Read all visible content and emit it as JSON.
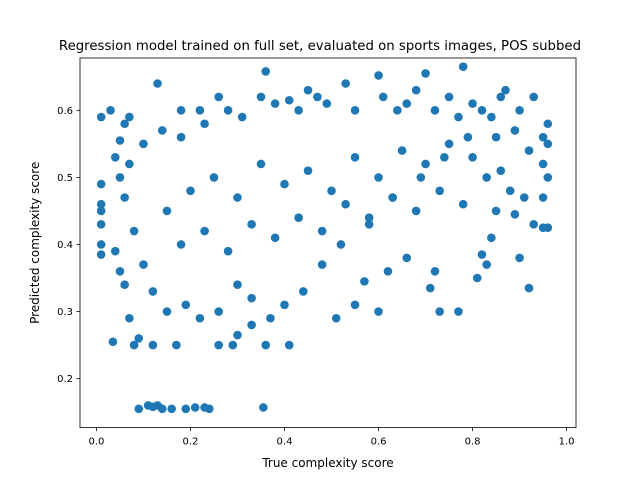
{
  "chart_data": {
    "type": "scatter",
    "title": "Regression model trained on full set, evaluated on sports images, POS subbed",
    "xlabel": "True complexity score",
    "ylabel": "Predicted complexity score",
    "xlim": [
      -0.035,
      1.02
    ],
    "ylim": [
      0.127,
      0.678
    ],
    "xticks": [
      0.0,
      0.2,
      0.4,
      0.6,
      0.8,
      1.0
    ],
    "xtick_labels": [
      "0.0",
      "0.2",
      "0.4",
      "0.6",
      "0.8",
      "1.0"
    ],
    "yticks": [
      0.2,
      0.3,
      0.4,
      0.5,
      0.6
    ],
    "ytick_labels": [
      "0.2",
      "0.3",
      "0.4",
      "0.5",
      "0.6"
    ],
    "grid": false,
    "legend": "none",
    "point_color": "#1f77b4",
    "notes_visible": "dense cloud of several thousand points; listed points are representative samples",
    "series": [
      {
        "values_xy": [
          [
            0.01,
            0.59
          ],
          [
            0.03,
            0.6
          ],
          [
            0.01,
            0.49
          ],
          [
            0.01,
            0.46
          ],
          [
            0.01,
            0.45
          ],
          [
            0.01,
            0.43
          ],
          [
            0.01,
            0.4
          ],
          [
            0.01,
            0.385
          ],
          [
            0.035,
            0.255
          ],
          [
            0.04,
            0.53
          ],
          [
            0.05,
            0.555
          ],
          [
            0.06,
            0.58
          ],
          [
            0.07,
            0.59
          ],
          [
            0.04,
            0.39
          ],
          [
            0.05,
            0.36
          ],
          [
            0.06,
            0.34
          ],
          [
            0.07,
            0.29
          ],
          [
            0.08,
            0.25
          ],
          [
            0.09,
            0.26
          ],
          [
            0.09,
            0.155
          ],
          [
            0.11,
            0.16
          ],
          [
            0.12,
            0.158
          ],
          [
            0.13,
            0.16
          ],
          [
            0.14,
            0.155
          ],
          [
            0.16,
            0.155
          ],
          [
            0.19,
            0.155
          ],
          [
            0.21,
            0.157
          ],
          [
            0.23,
            0.157
          ],
          [
            0.24,
            0.155
          ],
          [
            0.355,
            0.157
          ],
          [
            0.13,
            0.64
          ],
          [
            0.18,
            0.6
          ],
          [
            0.12,
            0.25
          ],
          [
            0.17,
            0.25
          ],
          [
            0.26,
            0.25
          ],
          [
            0.29,
            0.25
          ],
          [
            0.36,
            0.25
          ],
          [
            0.41,
            0.25
          ],
          [
            0.3,
            0.265
          ],
          [
            0.33,
            0.28
          ],
          [
            0.23,
            0.58
          ],
          [
            0.28,
            0.6
          ],
          [
            0.35,
            0.62
          ],
          [
            0.36,
            0.658
          ],
          [
            0.41,
            0.615
          ],
          [
            0.45,
            0.63
          ],
          [
            0.47,
            0.62
          ],
          [
            0.53,
            0.64
          ],
          [
            0.51,
            0.29
          ],
          [
            0.55,
            0.31
          ],
          [
            0.57,
            0.345
          ],
          [
            0.6,
            0.3
          ],
          [
            0.62,
            0.36
          ],
          [
            0.66,
            0.38
          ],
          [
            0.71,
            0.335
          ],
          [
            0.72,
            0.36
          ],
          [
            0.6,
            0.652
          ],
          [
            0.7,
            0.655
          ],
          [
            0.78,
            0.665
          ],
          [
            0.73,
            0.3
          ],
          [
            0.77,
            0.3
          ],
          [
            0.81,
            0.35
          ],
          [
            0.83,
            0.37
          ],
          [
            0.82,
            0.385
          ],
          [
            0.84,
            0.41
          ],
          [
            0.89,
            0.445
          ],
          [
            0.9,
            0.38
          ],
          [
            0.92,
            0.335
          ],
          [
            0.93,
            0.43
          ],
          [
            0.95,
            0.425
          ],
          [
            0.96,
            0.425
          ],
          [
            0.95,
            0.47
          ],
          [
            0.96,
            0.5
          ],
          [
            0.95,
            0.52
          ],
          [
            0.96,
            0.55
          ],
          [
            0.95,
            0.56
          ],
          [
            0.96,
            0.58
          ],
          [
            0.93,
            0.62
          ],
          [
            0.9,
            0.6
          ],
          [
            0.87,
            0.63
          ],
          [
            0.8,
            0.61
          ],
          [
            0.75,
            0.62
          ],
          [
            0.68,
            0.63
          ],
          [
            0.64,
            0.6
          ],
          [
            0.85,
            0.45
          ],
          [
            0.86,
            0.51
          ],
          [
            0.88,
            0.48
          ],
          [
            0.91,
            0.47
          ],
          [
            0.92,
            0.54
          ],
          [
            0.89,
            0.57
          ],
          [
            0.84,
            0.59
          ],
          [
            0.79,
            0.56
          ],
          [
            0.74,
            0.53
          ],
          [
            0.69,
            0.5
          ],
          [
            0.63,
            0.47
          ],
          [
            0.58,
            0.44
          ],
          [
            0.52,
            0.4
          ],
          [
            0.48,
            0.37
          ],
          [
            0.44,
            0.33
          ],
          [
            0.4,
            0.31
          ],
          [
            0.37,
            0.29
          ],
          [
            0.33,
            0.32
          ],
          [
            0.3,
            0.34
          ],
          [
            0.26,
            0.3
          ],
          [
            0.22,
            0.29
          ],
          [
            0.19,
            0.31
          ],
          [
            0.15,
            0.3
          ],
          [
            0.12,
            0.33
          ],
          [
            0.1,
            0.37
          ],
          [
            0.08,
            0.42
          ],
          [
            0.06,
            0.47
          ],
          [
            0.05,
            0.5
          ],
          [
            0.07,
            0.52
          ],
          [
            0.1,
            0.55
          ],
          [
            0.14,
            0.57
          ],
          [
            0.18,
            0.56
          ],
          [
            0.22,
            0.6
          ],
          [
            0.26,
            0.62
          ],
          [
            0.31,
            0.59
          ],
          [
            0.38,
            0.61
          ],
          [
            0.43,
            0.6
          ],
          [
            0.49,
            0.61
          ],
          [
            0.55,
            0.6
          ],
          [
            0.61,
            0.62
          ],
          [
            0.66,
            0.61
          ],
          [
            0.72,
            0.6
          ],
          [
            0.77,
            0.59
          ],
          [
            0.82,
            0.6
          ],
          [
            0.86,
            0.62
          ],
          [
            0.15,
            0.45
          ],
          [
            0.2,
            0.48
          ],
          [
            0.25,
            0.5
          ],
          [
            0.3,
            0.47
          ],
          [
            0.35,
            0.52
          ],
          [
            0.4,
            0.49
          ],
          [
            0.45,
            0.51
          ],
          [
            0.5,
            0.48
          ],
          [
            0.55,
            0.53
          ],
          [
            0.6,
            0.5
          ],
          [
            0.65,
            0.54
          ],
          [
            0.7,
            0.52
          ],
          [
            0.75,
            0.55
          ],
          [
            0.8,
            0.53
          ],
          [
            0.85,
            0.56
          ],
          [
            0.18,
            0.4
          ],
          [
            0.23,
            0.42
          ],
          [
            0.28,
            0.39
          ],
          [
            0.33,
            0.43
          ],
          [
            0.38,
            0.41
          ],
          [
            0.43,
            0.44
          ],
          [
            0.48,
            0.42
          ],
          [
            0.53,
            0.46
          ],
          [
            0.58,
            0.43
          ],
          [
            0.63,
            0.47
          ],
          [
            0.68,
            0.45
          ],
          [
            0.73,
            0.48
          ],
          [
            0.78,
            0.46
          ],
          [
            0.83,
            0.5
          ]
        ]
      }
    ]
  }
}
